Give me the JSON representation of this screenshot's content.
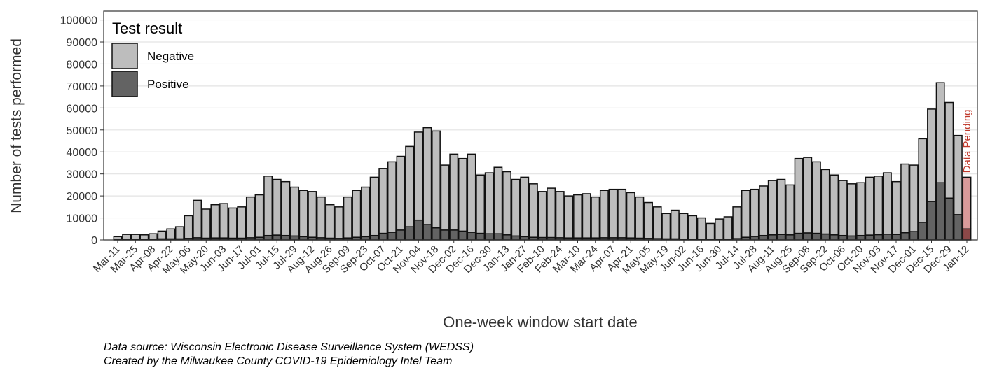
{
  "chart_data": {
    "type": "stacked_bar",
    "y_label": "Number of tests performed",
    "x_label": "One-week window start date",
    "legend_title": "Test result",
    "caption": [
      "Data source: Wisconsin Electronic Disease Surveillance System (WEDSS)",
      "Created by the Milwaukee County COVID-19 Epidemiology Intel Team"
    ],
    "annotation": {
      "text": "Data Pending",
      "color": "#c0392b"
    },
    "categories": [
      "Mar-11",
      null,
      "Mar-25",
      null,
      "Apr-08",
      null,
      "Apr-22",
      null,
      "May-06",
      null,
      "May-20",
      null,
      "Jun-03",
      null,
      "Jun-17",
      null,
      "Jul-01",
      null,
      "Jul-15",
      null,
      "Jul-29",
      null,
      "Aug-12",
      null,
      "Aug-26",
      null,
      "Sep-09",
      null,
      "Sep-23",
      null,
      "Oct-07",
      null,
      "Oct-21",
      null,
      "Nov-04",
      null,
      "Nov-18",
      null,
      "Dec-02",
      null,
      "Dec-16",
      null,
      "Dec-30",
      null,
      "Jan-13",
      null,
      "Jan-27",
      null,
      "Feb-10",
      null,
      "Feb-24",
      null,
      "Mar-10",
      null,
      "Mar-24",
      null,
      "Apr-07",
      null,
      "Apr-21",
      null,
      "May-05",
      null,
      "May-19",
      null,
      "Jun-02",
      null,
      "Jun-16",
      null,
      "Jun-30",
      null,
      "Jul-14",
      null,
      "Jul-28",
      null,
      "Aug-11",
      null,
      "Aug-25",
      null,
      "Sep-08",
      null,
      "Sep-22",
      null,
      "Oct-06",
      null,
      "Oct-20",
      null,
      "Nov-03",
      null,
      "Nov-17",
      null,
      "Dec-01",
      null,
      "Dec-15",
      null,
      "Dec-29",
      null,
      "Jan-12"
    ],
    "series": [
      {
        "name": "Negative",
        "color": "#bdbdbd",
        "pending_color": "#d99a9a",
        "values": [
          1300,
          2100,
          2100,
          1900,
          2400,
          3500,
          4500,
          5500,
          10300,
          17000,
          13200,
          15100,
          15600,
          13700,
          14200,
          18500,
          19300,
          27000,
          25300,
          24500,
          22200,
          21000,
          20800,
          18500,
          15200,
          14300,
          18600,
          21300,
          22500,
          26500,
          29500,
          32000,
          33500,
          36500,
          40000,
          44000,
          44000,
          29500,
          34500,
          33000,
          35500,
          26500,
          27700,
          30200,
          28700,
          25700,
          27000,
          24300,
          20900,
          22400,
          21000,
          19100,
          19600,
          20100,
          18600,
          21500,
          22000,
          22000,
          20600,
          18700,
          16300,
          14400,
          11500,
          13000,
          11600,
          10600,
          9700,
          7200,
          9200,
          10100,
          14400,
          21300,
          21400,
          22500,
          24700,
          25000,
          22700,
          34000,
          34300,
          32500,
          29300,
          27200,
          25000,
          23700,
          24000,
          26300,
          26600,
          27900,
          24000,
          31200,
          30200,
          38000,
          42000,
          45500,
          43500,
          36000,
          23500
        ]
      },
      {
        "name": "Positive",
        "color": "#636363",
        "pending_color": "#8c4848",
        "values": [
          200,
          400,
          400,
          400,
          400,
          500,
          500,
          500,
          700,
          1000,
          800,
          900,
          900,
          800,
          800,
          1000,
          1200,
          2000,
          2200,
          2000,
          1800,
          1500,
          1200,
          1000,
          800,
          700,
          900,
          1200,
          1500,
          2000,
          3000,
          3500,
          4500,
          6000,
          9000,
          7000,
          5500,
          4500,
          4500,
          4000,
          3500,
          3000,
          2800,
          2800,
          2300,
          1800,
          1500,
          1200,
          1100,
          1100,
          1000,
          900,
          900,
          900,
          900,
          1000,
          1000,
          1000,
          900,
          800,
          700,
          600,
          500,
          500,
          400,
          400,
          300,
          300,
          300,
          400,
          600,
          1200,
          1600,
          2000,
          2300,
          2500,
          2300,
          3000,
          3200,
          3000,
          2700,
          2300,
          2000,
          1800,
          2000,
          2200,
          2400,
          2600,
          2500,
          3300,
          3800,
          8000,
          17500,
          26000,
          19000,
          11500,
          5000
        ]
      }
    ],
    "ylim": [
      0,
      104000
    ],
    "yticks": [
      0,
      10000,
      20000,
      30000,
      40000,
      50000,
      60000,
      70000,
      80000,
      90000,
      100000
    ],
    "grid": true
  }
}
